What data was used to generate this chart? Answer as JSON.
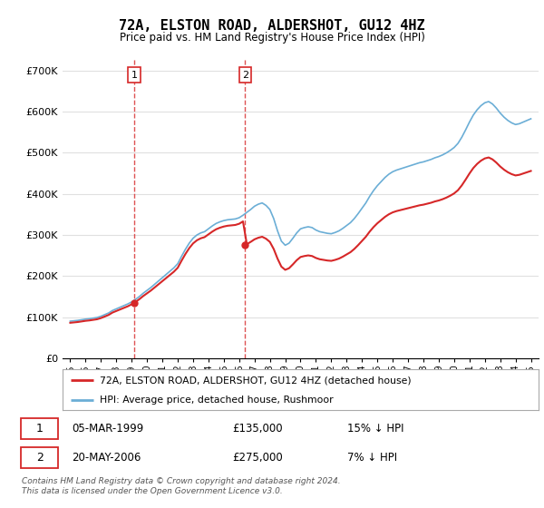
{
  "title": "72A, ELSTON ROAD, ALDERSHOT, GU12 4HZ",
  "subtitle": "Price paid vs. HM Land Registry's House Price Index (HPI)",
  "legend_line1": "72A, ELSTON ROAD, ALDERSHOT, GU12 4HZ (detached house)",
  "legend_line2": "HPI: Average price, detached house, Rushmoor",
  "footer": "Contains HM Land Registry data © Crown copyright and database right 2024.\nThis data is licensed under the Open Government Licence v3.0.",
  "sale1_date": "05-MAR-1999",
  "sale1_price": "£135,000",
  "sale1_hpi": "15% ↓ HPI",
  "sale2_date": "20-MAY-2006",
  "sale2_price": "£275,000",
  "sale2_hpi": "7% ↓ HPI",
  "sale1_year": 1999.17,
  "sale2_year": 2006.38,
  "sale1_value": 135000,
  "sale2_value": 275000,
  "hpi_color": "#6baed6",
  "price_color": "#d62728",
  "vline_color": "#d62728",
  "marker_color": "#d62728",
  "ylim": [
    0,
    730000
  ],
  "xlim_start": 1994.5,
  "xlim_end": 2025.5,
  "background_color": "#ffffff",
  "grid_color": "#e0e0e0",
  "years_hpi": [
    1995.0,
    1995.25,
    1995.5,
    1995.75,
    1996.0,
    1996.25,
    1996.5,
    1996.75,
    1997.0,
    1997.25,
    1997.5,
    1997.75,
    1998.0,
    1998.25,
    1998.5,
    1998.75,
    1999.0,
    1999.25,
    1999.5,
    1999.75,
    2000.0,
    2000.25,
    2000.5,
    2000.75,
    2001.0,
    2001.25,
    2001.5,
    2001.75,
    2002.0,
    2002.25,
    2002.5,
    2002.75,
    2003.0,
    2003.25,
    2003.5,
    2003.75,
    2004.0,
    2004.25,
    2004.5,
    2004.75,
    2005.0,
    2005.25,
    2005.5,
    2005.75,
    2006.0,
    2006.25,
    2006.5,
    2006.75,
    2007.0,
    2007.25,
    2007.5,
    2007.75,
    2008.0,
    2008.25,
    2008.5,
    2008.75,
    2009.0,
    2009.25,
    2009.5,
    2009.75,
    2010.0,
    2010.25,
    2010.5,
    2010.75,
    2011.0,
    2011.25,
    2011.5,
    2011.75,
    2012.0,
    2012.25,
    2012.5,
    2012.75,
    2013.0,
    2013.25,
    2013.5,
    2013.75,
    2014.0,
    2014.25,
    2014.5,
    2014.75,
    2015.0,
    2015.25,
    2015.5,
    2015.75,
    2016.0,
    2016.25,
    2016.5,
    2016.75,
    2017.0,
    2017.25,
    2017.5,
    2017.75,
    2018.0,
    2018.25,
    2018.5,
    2018.75,
    2019.0,
    2019.25,
    2019.5,
    2019.75,
    2020.0,
    2020.25,
    2020.5,
    2020.75,
    2021.0,
    2021.25,
    2021.5,
    2021.75,
    2022.0,
    2022.25,
    2022.5,
    2022.75,
    2023.0,
    2023.25,
    2023.5,
    2023.75,
    2024.0,
    2024.25,
    2024.5,
    2024.75,
    2025.0
  ],
  "hpi_values": [
    90000,
    91000,
    92000,
    93500,
    95000,
    96000,
    97500,
    99000,
    102000,
    106000,
    110000,
    116000,
    120000,
    124000,
    128000,
    132000,
    137000,
    143000,
    150000,
    158000,
    165000,
    172000,
    180000,
    188000,
    196000,
    204000,
    212000,
    220000,
    230000,
    248000,
    265000,
    280000,
    292000,
    300000,
    305000,
    308000,
    315000,
    322000,
    328000,
    332000,
    335000,
    337000,
    338000,
    339000,
    342000,
    348000,
    355000,
    362000,
    370000,
    375000,
    378000,
    372000,
    362000,
    340000,
    310000,
    285000,
    275000,
    280000,
    292000,
    305000,
    315000,
    318000,
    320000,
    318000,
    312000,
    308000,
    306000,
    304000,
    303000,
    306000,
    310000,
    316000,
    323000,
    330000,
    340000,
    352000,
    365000,
    378000,
    394000,
    408000,
    420000,
    430000,
    440000,
    448000,
    454000,
    458000,
    461000,
    464000,
    467000,
    470000,
    473000,
    476000,
    478000,
    481000,
    484000,
    488000,
    491000,
    495000,
    500000,
    506000,
    513000,
    523000,
    538000,
    556000,
    575000,
    592000,
    605000,
    615000,
    622000,
    625000,
    619000,
    609000,
    597000,
    587000,
    579000,
    573000,
    569000,
    571000,
    575000,
    579000,
    583000
  ]
}
